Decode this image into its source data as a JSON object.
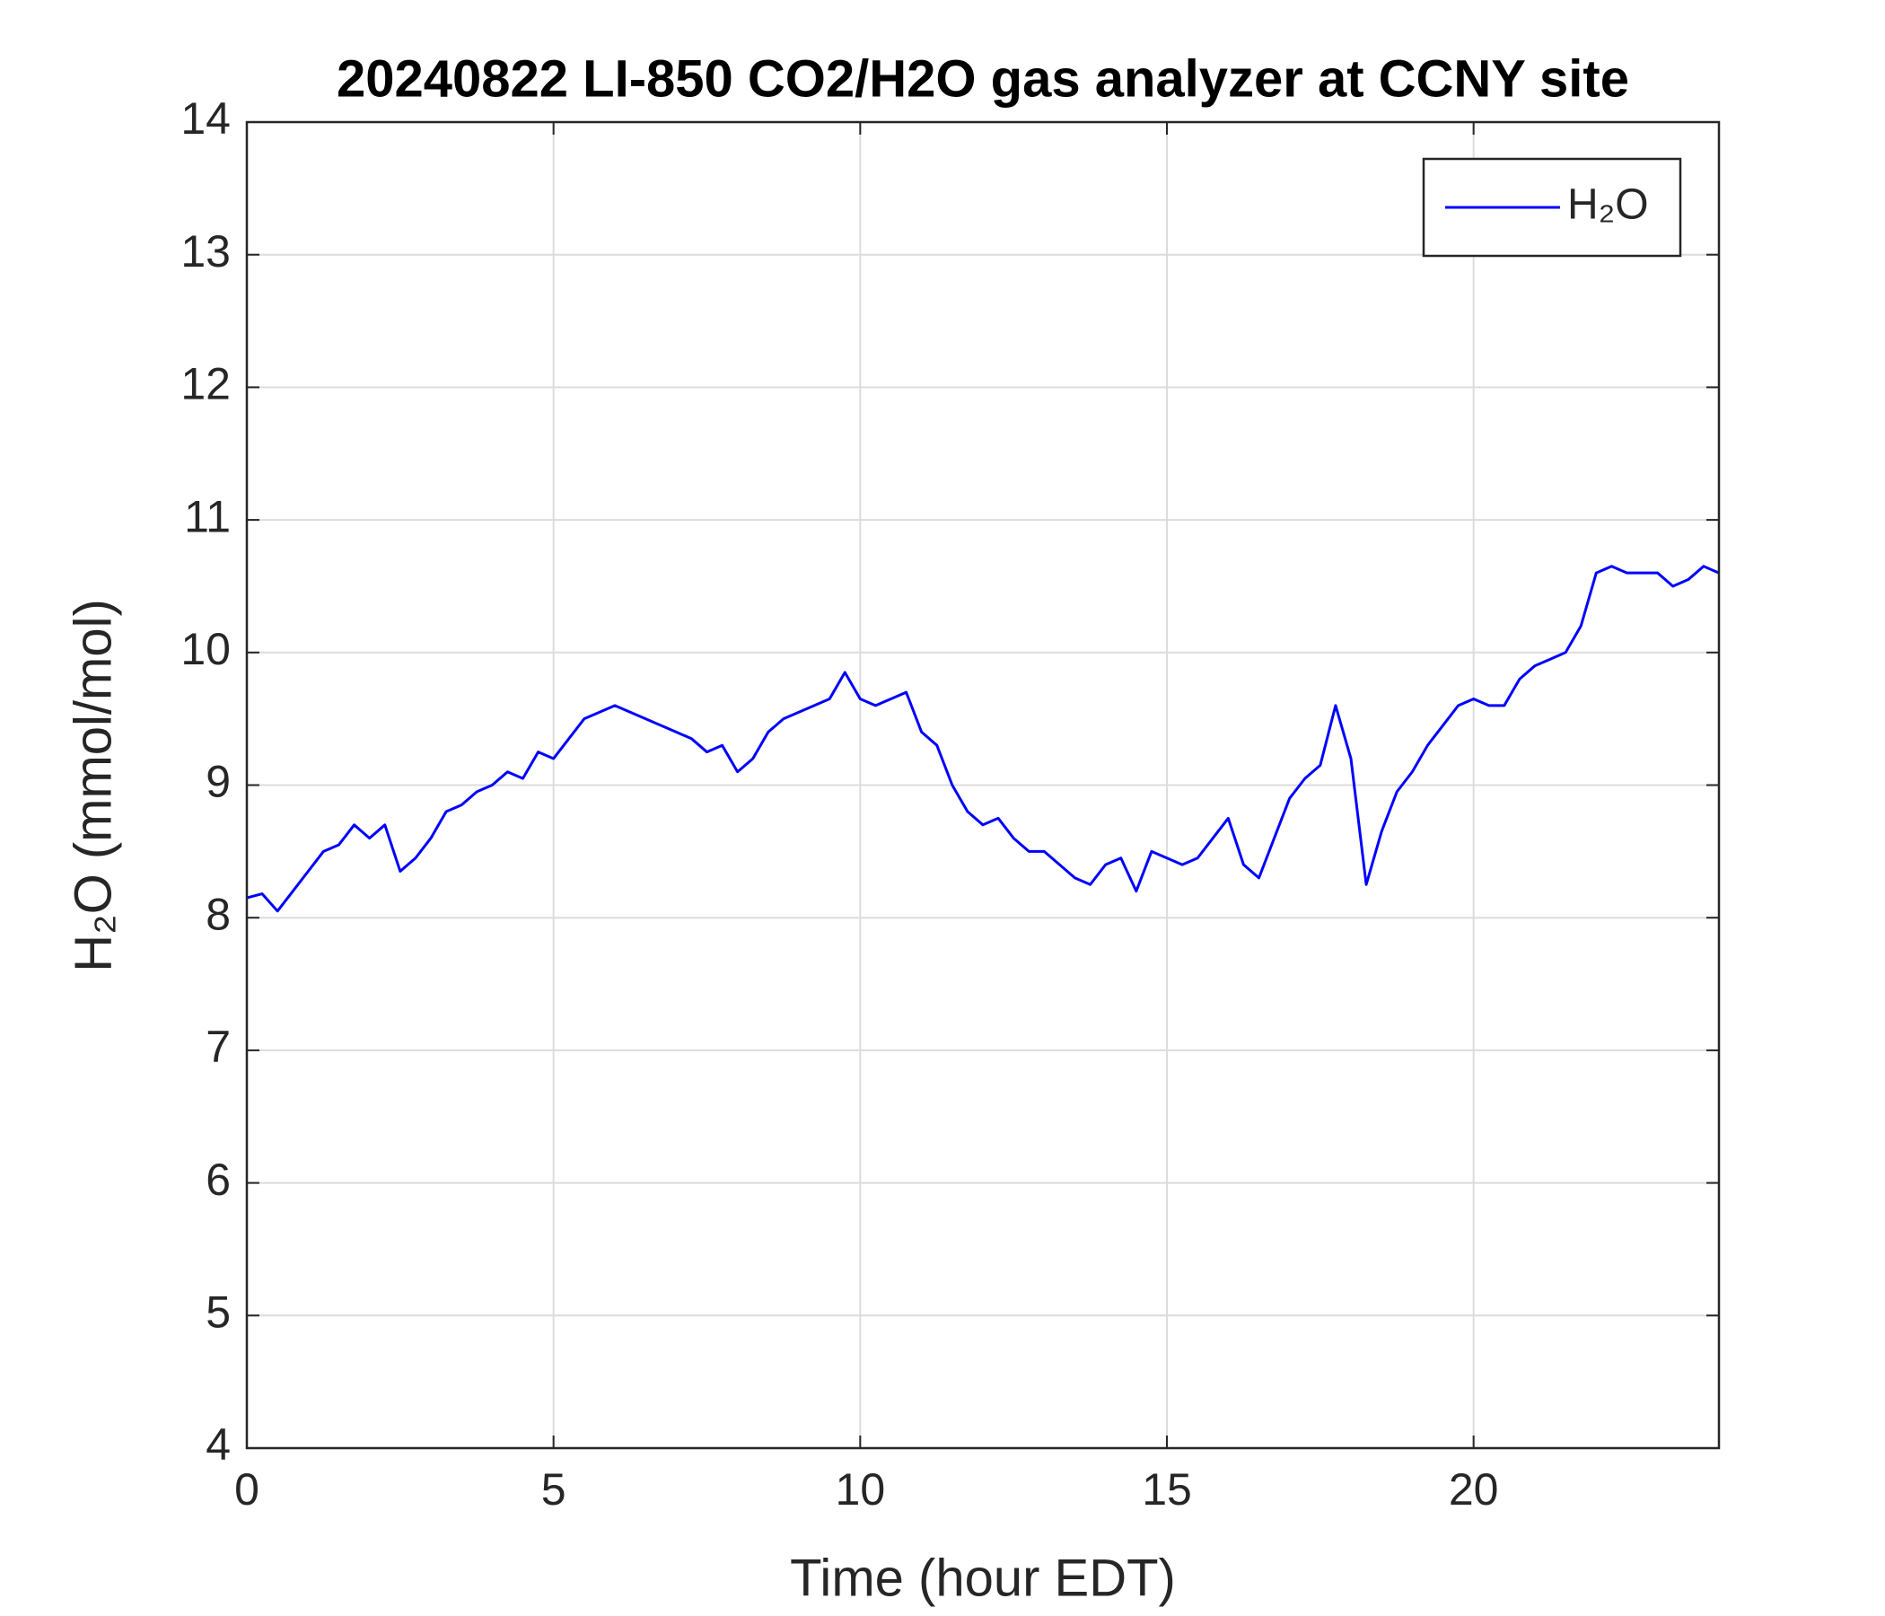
{
  "chart_data": {
    "type": "line",
    "title": "20240822 LI-850 CO2/H2O gas analyzer at CCNY site",
    "xlabel": "Time (hour EDT)",
    "ylabel": "H₂O (mmol/mol)",
    "x": [
      0,
      0.25,
      0.5,
      0.75,
      1,
      1.25,
      1.5,
      1.75,
      2,
      2.25,
      2.5,
      2.75,
      3,
      3.25,
      3.5,
      3.75,
      4,
      4.25,
      4.5,
      4.75,
      5,
      5.25,
      5.5,
      5.75,
      6,
      6.25,
      6.5,
      6.75,
      7,
      7.25,
      7.5,
      7.75,
      8,
      8.25,
      8.5,
      8.75,
      9,
      9.25,
      9.5,
      9.75,
      10,
      10.25,
      10.5,
      10.75,
      11,
      11.25,
      11.5,
      11.75,
      12,
      12.25,
      12.5,
      12.75,
      13,
      13.25,
      13.5,
      13.75,
      14,
      14.25,
      14.5,
      14.75,
      15,
      15.25,
      15.5,
      15.75,
      16,
      16.25,
      16.5,
      16.75,
      17,
      17.25,
      17.5,
      17.75,
      18,
      18.25,
      18.5,
      18.75,
      19,
      19.25,
      19.5,
      19.75,
      20,
      20.25,
      20.5,
      20.75,
      21,
      21.25,
      21.5,
      21.75,
      22,
      22.25,
      22.5,
      22.75,
      23,
      23.25,
      23.5,
      23.75,
      24
    ],
    "series": [
      {
        "name": "H₂O",
        "color": "#0000ff",
        "values": [
          8.15,
          8.18,
          8.05,
          8.2,
          8.35,
          8.5,
          8.55,
          8.7,
          8.6,
          8.7,
          8.35,
          8.45,
          8.6,
          8.8,
          8.85,
          8.95,
          9.0,
          9.1,
          9.05,
          9.25,
          9.2,
          9.35,
          9.5,
          9.55,
          9.6,
          9.55,
          9.5,
          9.45,
          9.4,
          9.35,
          9.25,
          9.3,
          9.1,
          9.2,
          9.4,
          9.5,
          9.55,
          9.6,
          9.65,
          9.85,
          9.65,
          9.6,
          9.65,
          9.7,
          9.4,
          9.3,
          9.0,
          8.8,
          8.7,
          8.75,
          8.6,
          8.5,
          8.5,
          8.4,
          8.3,
          8.25,
          8.4,
          8.45,
          8.2,
          8.5,
          8.45,
          8.4,
          8.45,
          8.6,
          8.75,
          8.4,
          8.3,
          8.6,
          8.9,
          9.05,
          9.15,
          9.6,
          9.2,
          8.25,
          8.65,
          8.95,
          9.1,
          9.3,
          9.45,
          9.6,
          9.65,
          9.6,
          9.6,
          9.8,
          9.9,
          9.95,
          10.0,
          10.2,
          10.6,
          10.65,
          10.6,
          10.6,
          10.6,
          10.5,
          10.55,
          10.65,
          10.6
        ]
      }
    ],
    "xlim": [
      0,
      24
    ],
    "xticks": [
      0,
      5,
      10,
      15,
      20
    ],
    "ylim": [
      4,
      14
    ],
    "yticks": [
      4,
      5,
      6,
      7,
      8,
      9,
      10,
      11,
      12,
      13,
      14
    ],
    "grid": true,
    "legend": "northeast"
  }
}
